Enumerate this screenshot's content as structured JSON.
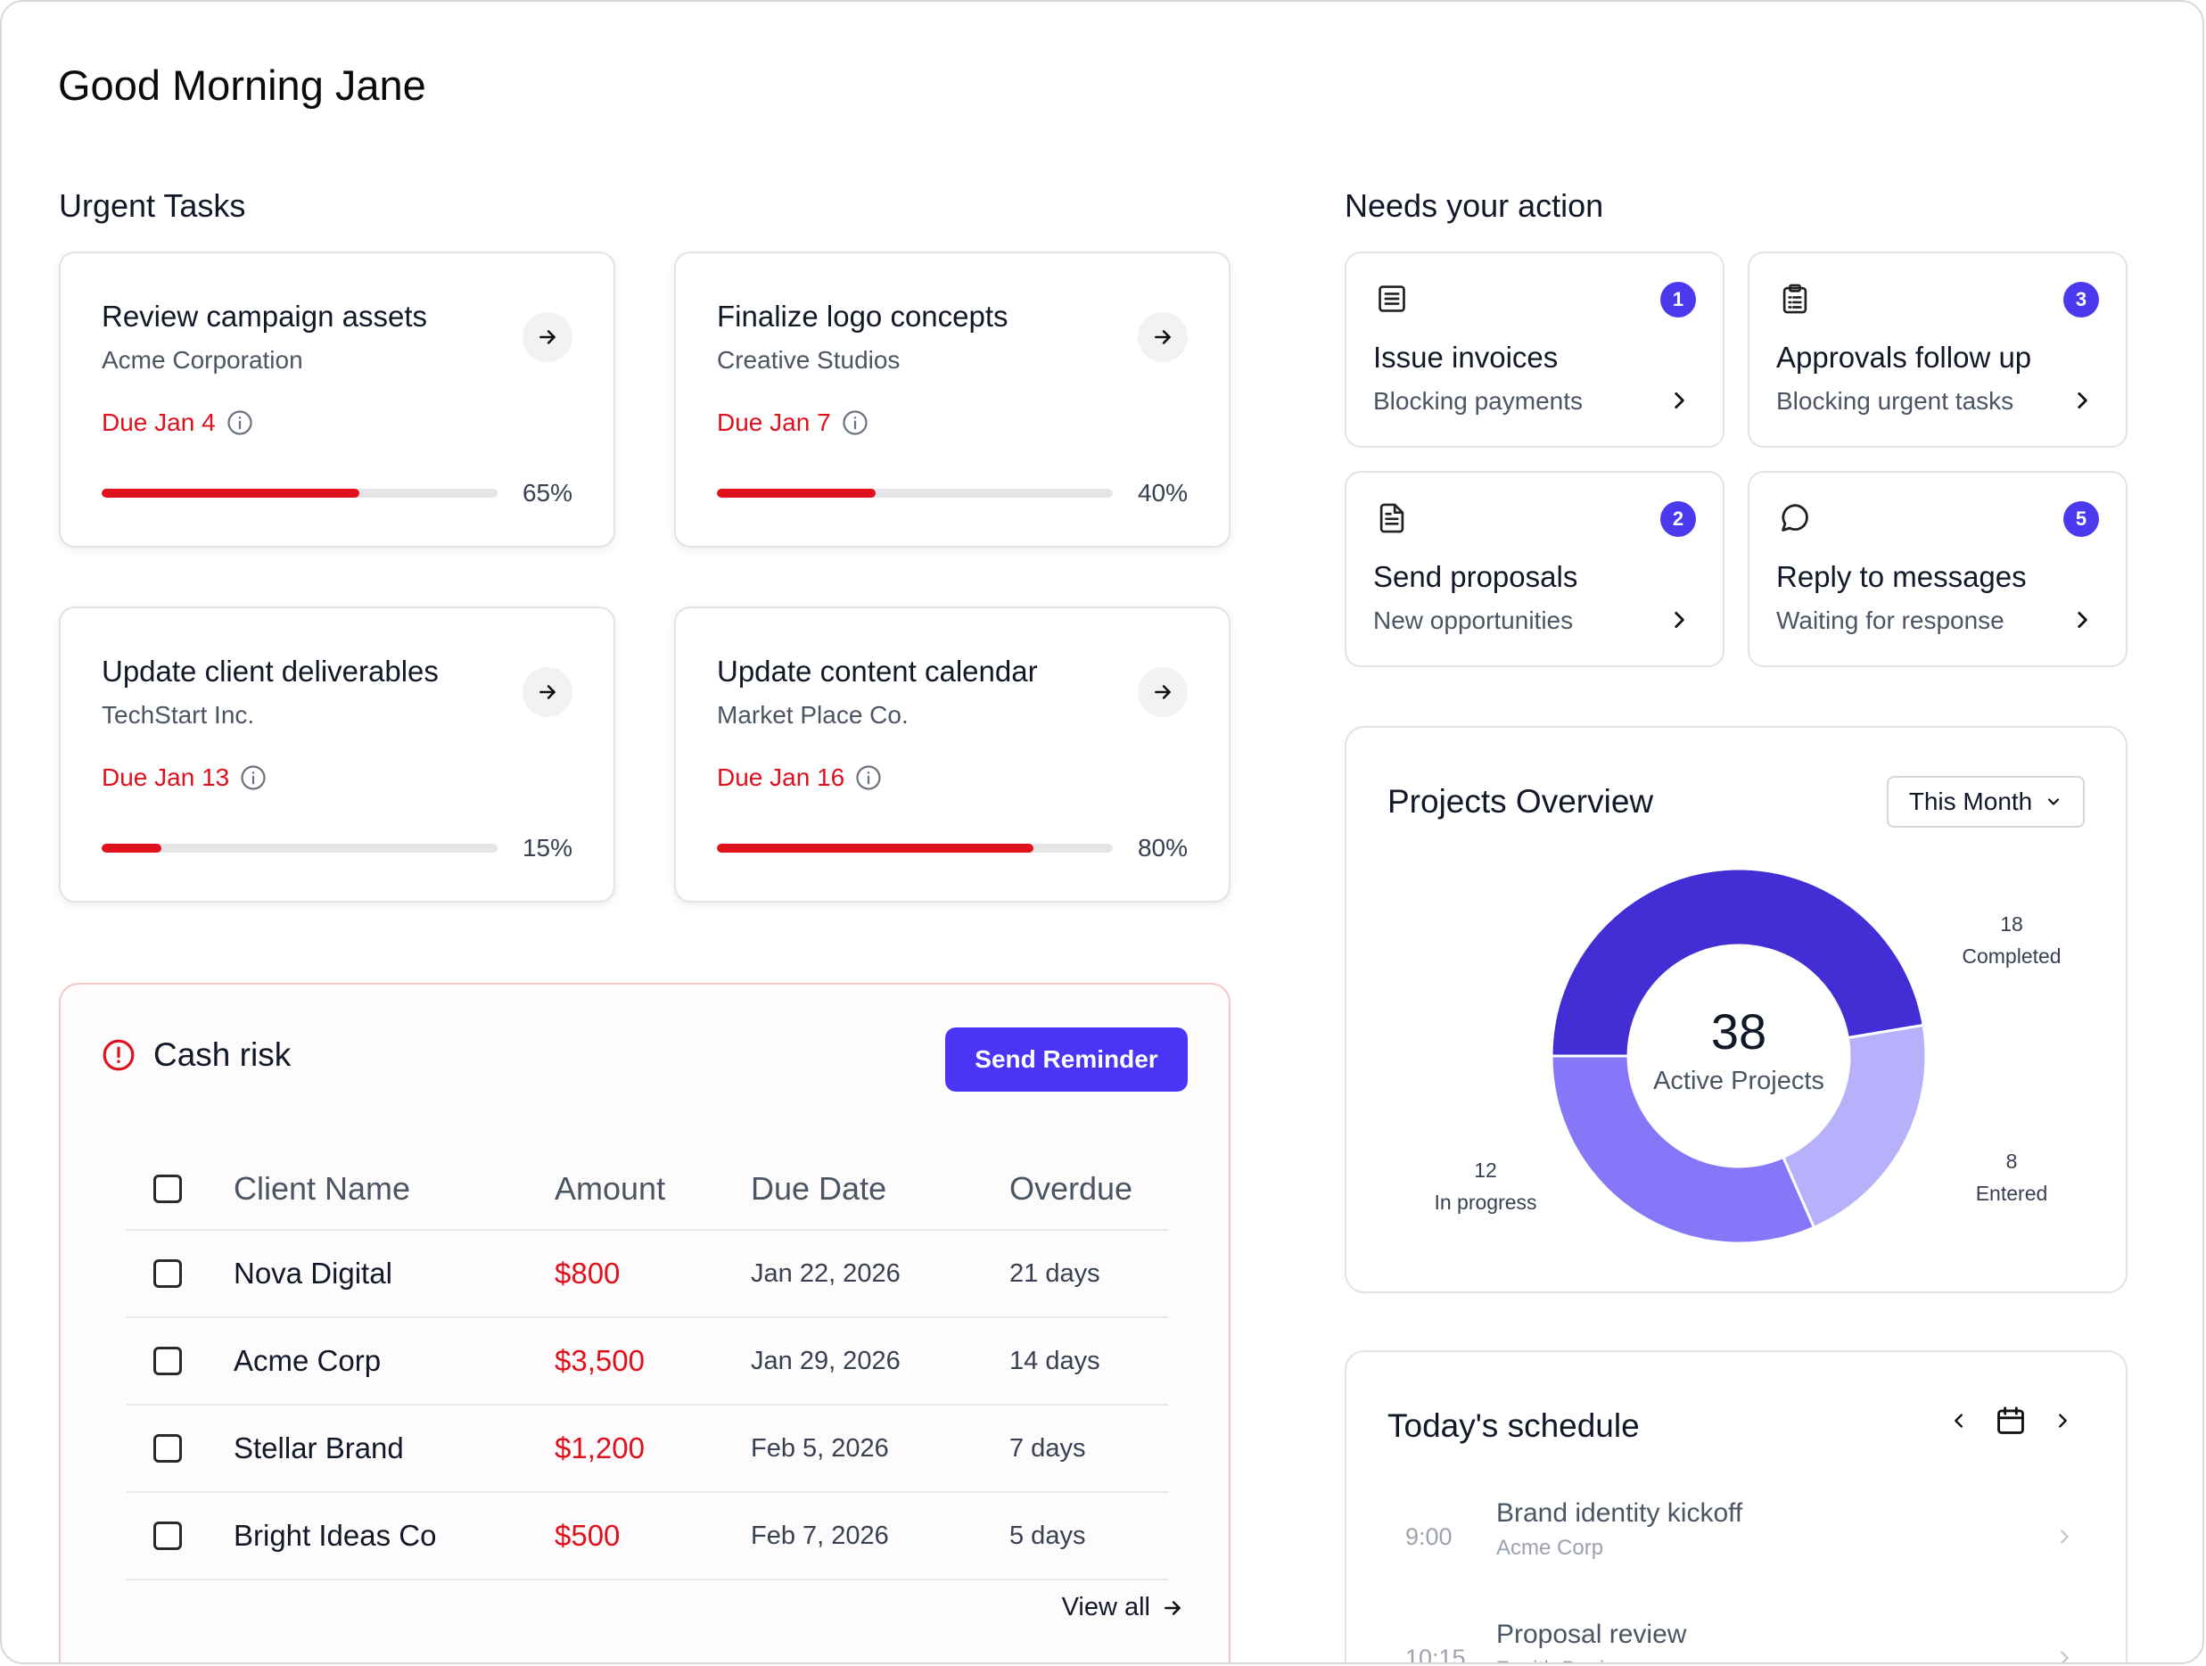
{
  "greeting": "Good Morning Jane",
  "urgent": {
    "title": "Urgent Tasks",
    "tasks": [
      {
        "title": "Review campaign assets",
        "client": "Acme Corporation",
        "due": "Due Jan 4",
        "progress": 65,
        "progress_label": "65%"
      },
      {
        "title": "Finalize logo concepts",
        "client": "Creative Studios",
        "due": "Due Jan 7",
        "progress": 40,
        "progress_label": "40%"
      },
      {
        "title": "Update client deliverables",
        "client": "TechStart Inc.",
        "due": "Due Jan 13",
        "progress": 15,
        "progress_label": "15%"
      },
      {
        "title": "Update content calendar",
        "client": "Market Place Co.",
        "due": "Due Jan 16",
        "progress": 80,
        "progress_label": "80%"
      }
    ]
  },
  "actions": {
    "title": "Needs your action",
    "items": [
      {
        "icon": "list-document-icon",
        "badge": "1",
        "title": "Issue invoices",
        "subtitle": "Blocking payments"
      },
      {
        "icon": "clipboard-icon",
        "badge": "3",
        "title": "Approvals follow up",
        "subtitle": "Blocking urgent tasks"
      },
      {
        "icon": "file-text-icon",
        "badge": "2",
        "title": "Send proposals",
        "subtitle": "New opportunities"
      },
      {
        "icon": "message-bubble-icon",
        "badge": "5",
        "title": "Reply to messages",
        "subtitle": "Waiting for response"
      }
    ]
  },
  "cash": {
    "title": "Cash risk",
    "button": "Send Reminder",
    "columns": {
      "client": "Client Name",
      "amount": "Amount",
      "due": "Due Date",
      "overdue": "Overdue"
    },
    "rows": [
      {
        "client": "Nova Digital",
        "amount": "$800",
        "due": "Jan 22, 2026",
        "overdue": "21 days"
      },
      {
        "client": "Acme Corp",
        "amount": "$3,500",
        "due": "Jan 29, 2026",
        "overdue": "14 days"
      },
      {
        "client": "Stellar Brand",
        "amount": "$1,200",
        "due": "Feb 5, 2026",
        "overdue": "7 days"
      },
      {
        "client": "Bright Ideas Co",
        "amount": "$500",
        "due": "Feb 7, 2026",
        "overdue": "5 days"
      }
    ],
    "view_all": "View all"
  },
  "projects": {
    "title": "Projects Overview",
    "period": "This Month",
    "total": "38",
    "total_label": "Active Projects",
    "segments": [
      {
        "count": "18",
        "label": "Completed",
        "value": 18,
        "color": "#432ed6"
      },
      {
        "count": "8",
        "label": "Entered",
        "value": 8,
        "color": "#b7b1fb"
      },
      {
        "count": "12",
        "label": "In progress",
        "value": 12,
        "color": "#8577f8"
      }
    ]
  },
  "schedule": {
    "title": "Today's schedule",
    "items": [
      {
        "time": "9:00",
        "title": "Brand identity kickoff",
        "client": "Acme Corp"
      },
      {
        "time": "10:15",
        "title": "Proposal review",
        "client": "Zenith Design"
      }
    ]
  },
  "colors": {
    "accent": "#4b35f5",
    "danger": "#e0101d",
    "border": "#e3e3e6"
  }
}
